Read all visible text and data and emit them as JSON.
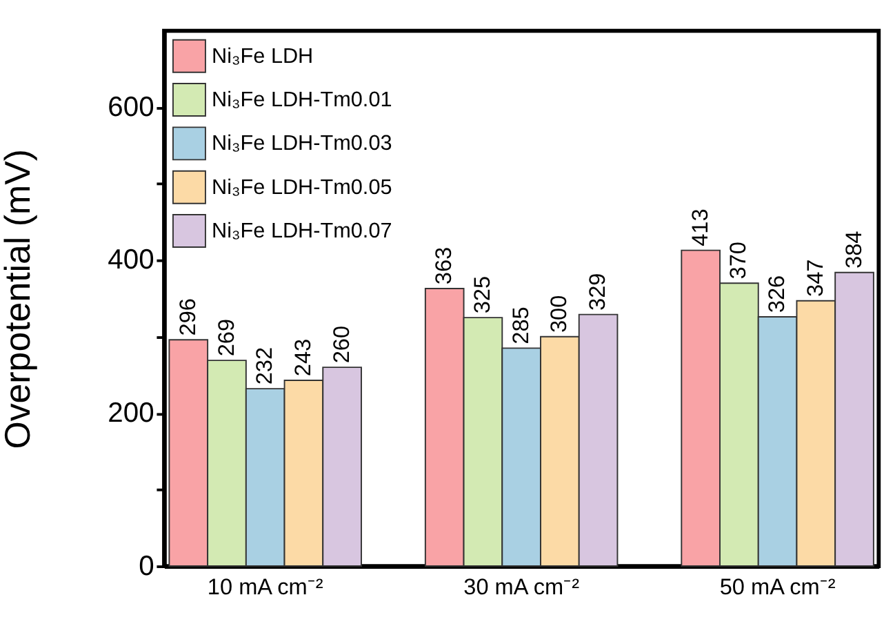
{
  "chart_data": {
    "type": "bar",
    "ylabel": "Overpotential (mV)",
    "categories": [
      "10 mA cm⁻²",
      "30 mA cm⁻²",
      "50 mA cm⁻²"
    ],
    "series": [
      {
        "name": "Ni₃Fe LDH",
        "color": "#f9a3a6",
        "values": [
          296,
          363,
          413
        ]
      },
      {
        "name": "Ni₃Fe LDH-Tm0.01",
        "color": "#d3eab3",
        "values": [
          269,
          325,
          370
        ]
      },
      {
        "name": "Ni₃Fe LDH-Tm0.03",
        "color": "#a9d0e3",
        "values": [
          232,
          285,
          326
        ]
      },
      {
        "name": "Ni₃Fe LDH-Tm0.05",
        "color": "#fcdaa6",
        "values": [
          243,
          300,
          347
        ]
      },
      {
        "name": "Ni₃Fe LDH-Tm0.07",
        "color": "#d8c6e0",
        "values": [
          260,
          329,
          384
        ]
      }
    ],
    "ylim": [
      0,
      700
    ],
    "yticks": [
      0,
      {
        "value": 100,
        "label": null
      },
      200,
      {
        "value": 300,
        "label": null
      },
      400,
      {
        "value": 500,
        "label": null
      },
      600
    ],
    "data_labels": true,
    "legend": "top left",
    "grid": false
  }
}
